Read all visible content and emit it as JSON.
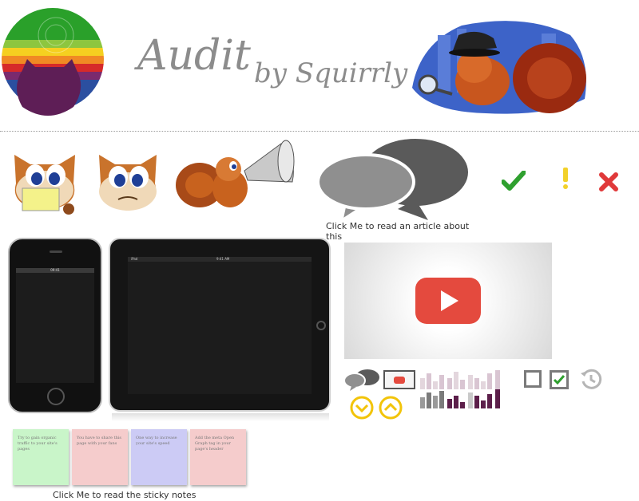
{
  "header": {
    "brand_main": "Audit",
    "brand_sub": "by Squirrly"
  },
  "article_link": {
    "label": "Click Me to read an article about this"
  },
  "status_icons": [
    "check-icon",
    "exclamation-icon",
    "close-x-icon"
  ],
  "devices": {
    "phone_time": "09:41",
    "tablet_carrier": "iPad",
    "tablet_time": "9:41 AM"
  },
  "sticky_notes": {
    "caption": "Click Me to read the sticky notes",
    "notes": [
      {
        "text": "Try to gain organic traffic to your site's pages",
        "color": "#c9f5c9"
      },
      {
        "text": "You have to share this page with your fans",
        "color": "#f5cccc"
      },
      {
        "text": "One way to increase your site's speed",
        "color": "#cccbf5"
      },
      {
        "text": "Add the meta Open Graph tag in your page's header",
        "color": "#f5cccc"
      }
    ]
  },
  "colors": {
    "check": "#2fa02f",
    "exclamation": "#f2d12a",
    "close": "#e0393a",
    "youtube": "#e44a3e",
    "chevron": "#f2c40a",
    "bars_light": "#d9c5d2",
    "bars_dark": "#5c1f4a"
  }
}
